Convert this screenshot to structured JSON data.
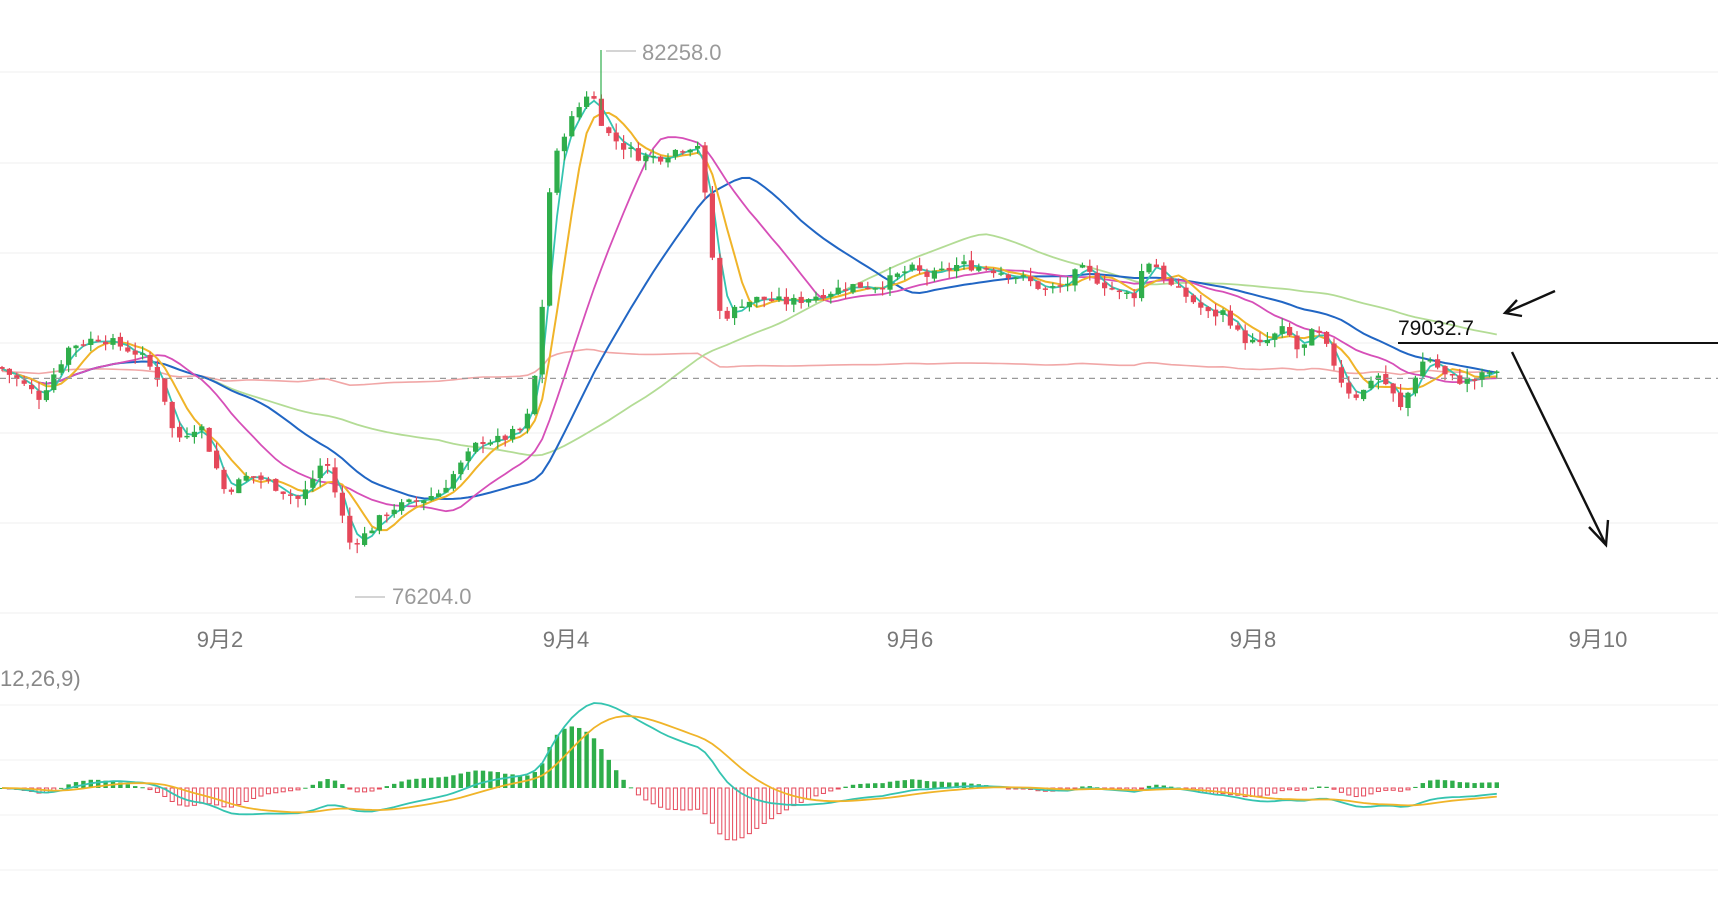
{
  "chart_data": {
    "type": "candlestick",
    "title": "",
    "xlabel": "",
    "ylabel": "",
    "x_ticks": [
      "9月2",
      "9月4",
      "9月6",
      "9月8",
      "9月10"
    ],
    "high_label": "82258.0",
    "low_label": "76204.0",
    "level_label": "79032.7",
    "level_value": 79032.7,
    "current_price": 78620,
    "ylim": [
      75900,
      82700
    ],
    "macd_label": "12,26,9)",
    "colors": {
      "up": "#2fae4b",
      "down": "#e5485a",
      "ma_fast": "#35c4b0",
      "ma_mid": "#f0b429",
      "ma_pink": "#d64fb8",
      "ma_blue": "#2166c4",
      "ma_lightgreen": "#b3dc95",
      "ma_salmon": "#f1a7a7",
      "macd_dif": "#35c4b0",
      "macd_dea": "#f0b429"
    },
    "annotations": [
      "arrow-to-level",
      "arrow-down-forecast"
    ]
  }
}
